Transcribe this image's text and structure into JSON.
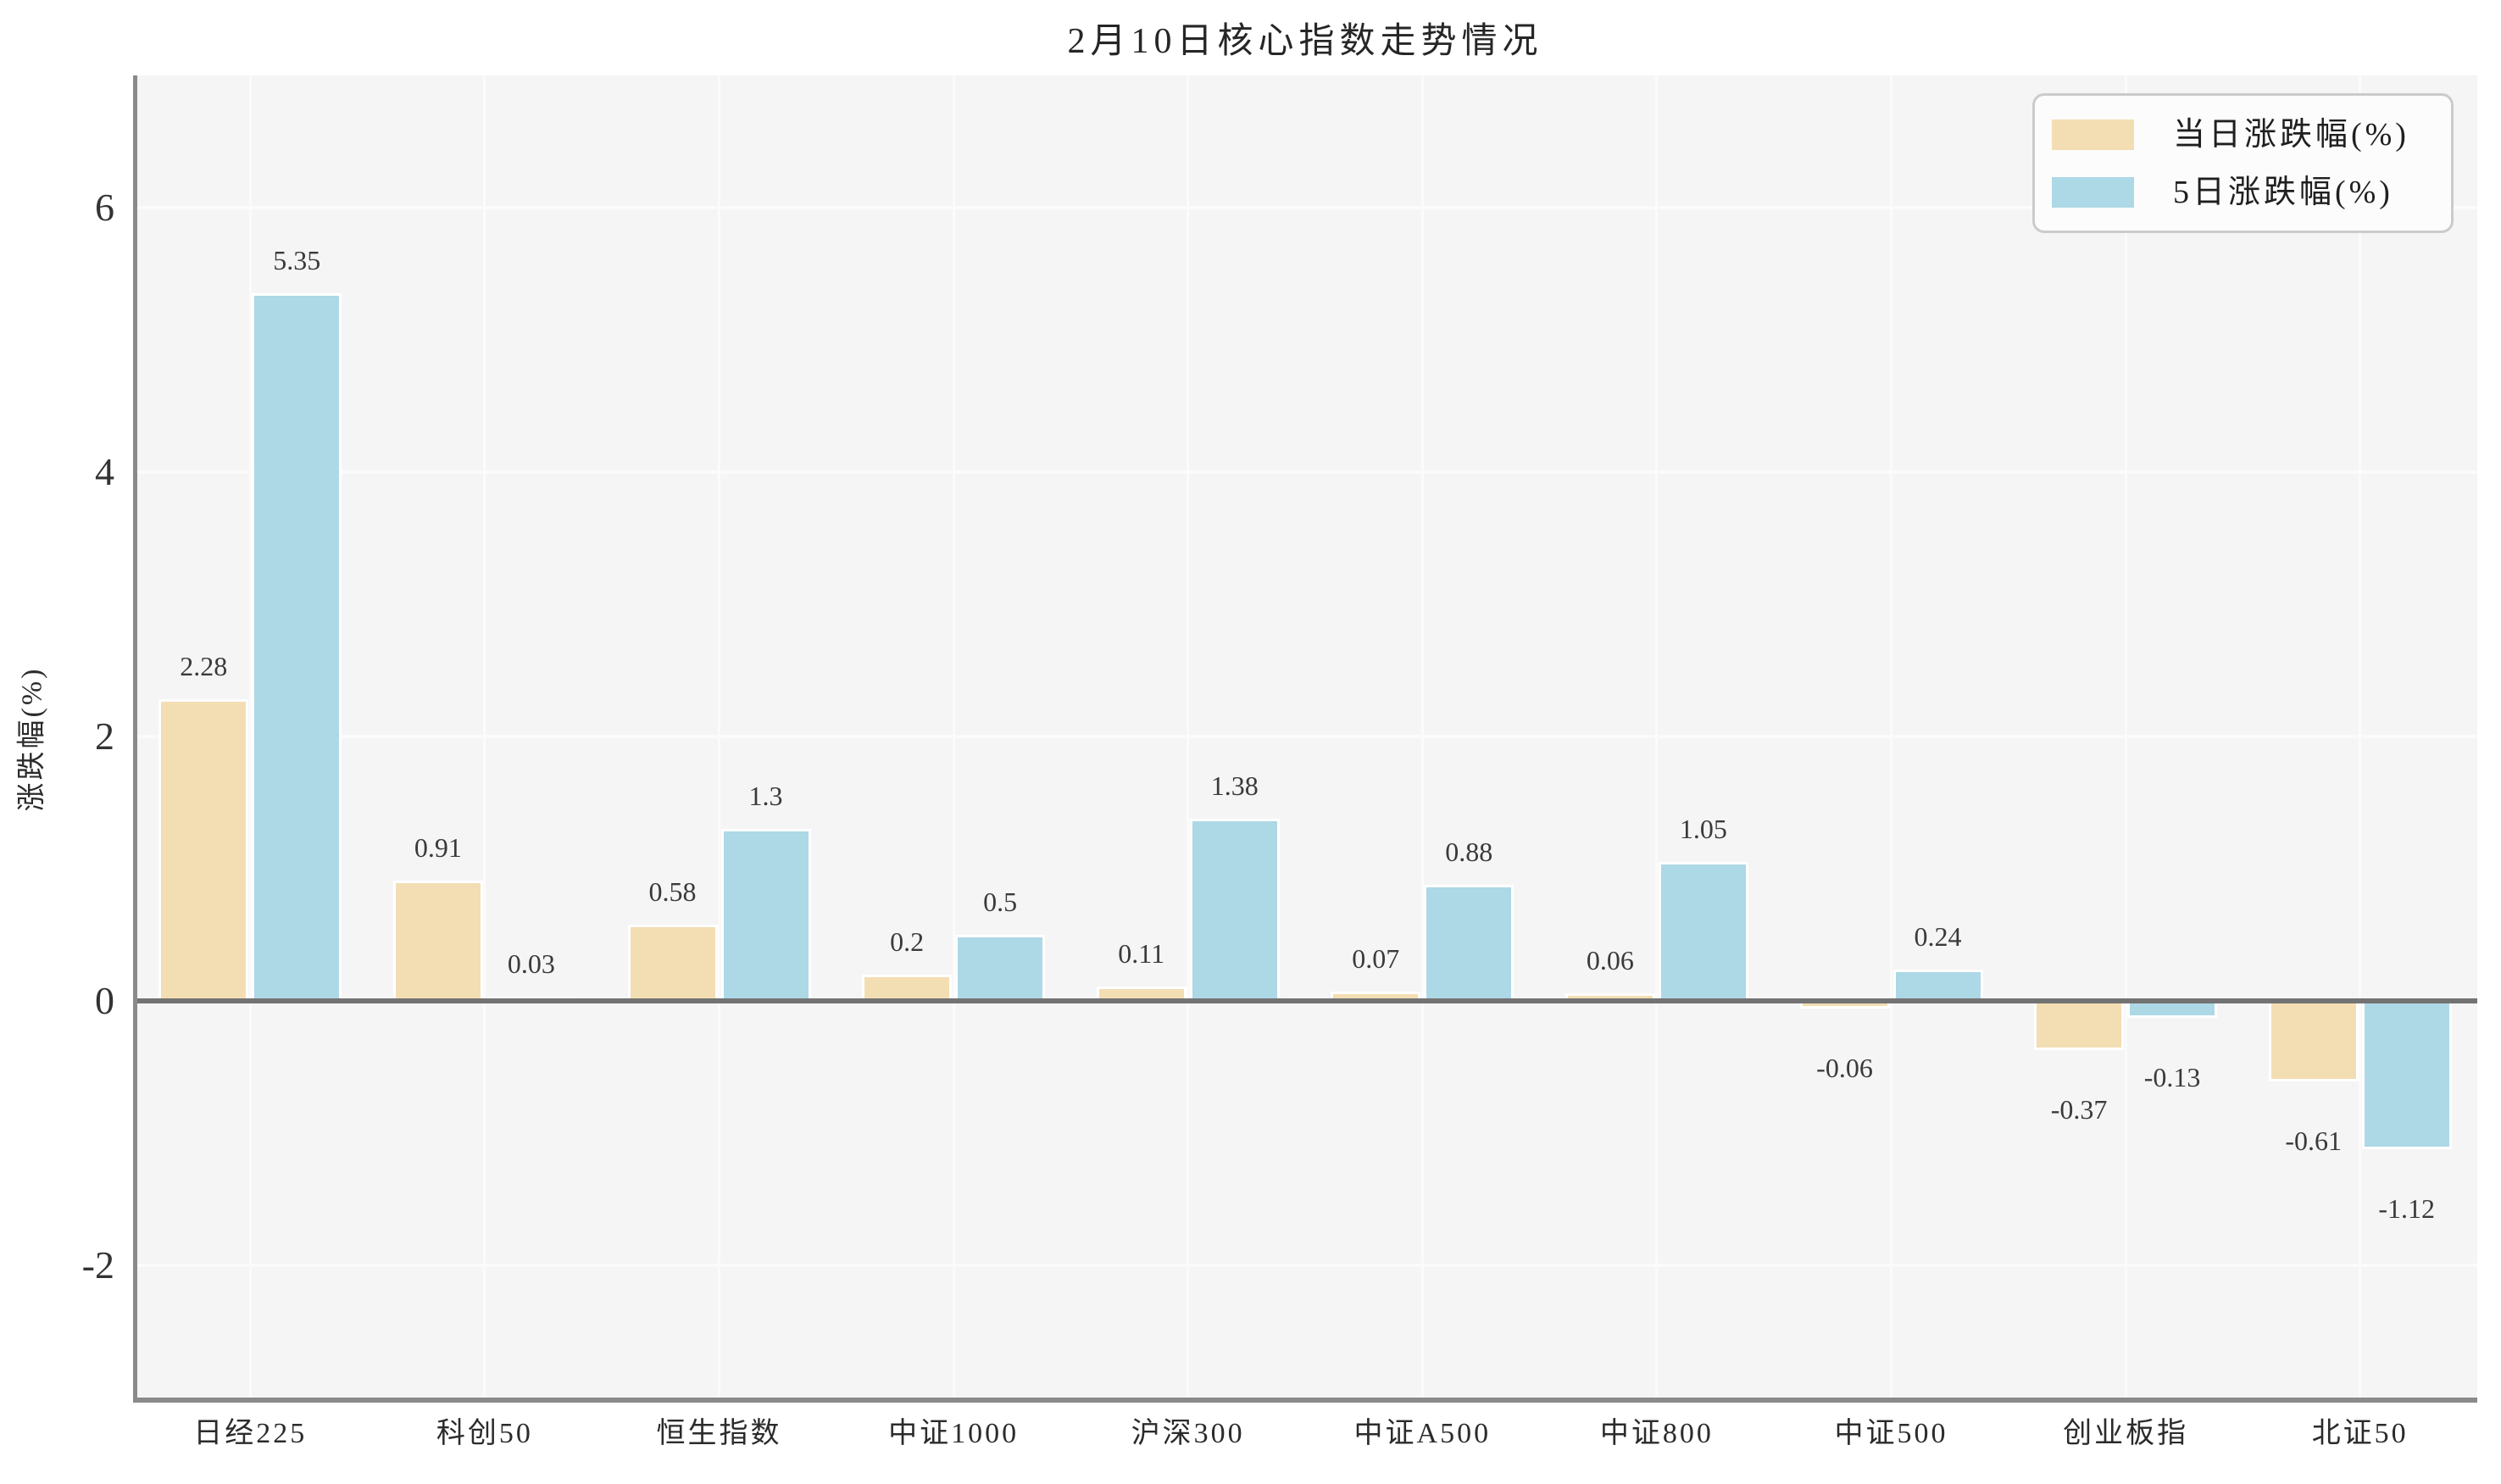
{
  "title": "2月10日核心指数走势情况",
  "colors": {
    "plot_background": "#f5f5f5",
    "bar_day": "#f3deb3",
    "bar_5day": "#add8e6",
    "zero_line": "#737373",
    "spine": "#8a8a8a",
    "gridline": "#fbfbfb",
    "legend_background": "#fcfcfc",
    "legend_border": "#cbcbcb",
    "text": "#2b2b2b"
  },
  "legend": {
    "items": [
      {
        "label": "当日涨跌幅(%)"
      },
      {
        "label": "5日涨跌幅(%)"
      }
    ]
  },
  "chart_data": {
    "type": "bar",
    "title": "2月10日核心指数走势情况",
    "categories": [
      "日经225",
      "科创50",
      "恒生指数",
      "中证1000",
      "沪深300",
      "中证A500",
      "中证800",
      "中证500",
      "创业板指",
      "北证50"
    ],
    "series": [
      {
        "name": "当日涨跌幅(%)",
        "color": "#f3deb3",
        "values": [
          2.28,
          0.91,
          0.58,
          0.2,
          0.11,
          0.07,
          0.06,
          -0.06,
          -0.37,
          -0.61
        ]
      },
      {
        "name": "5日涨跌幅(%)",
        "color": "#add8e6",
        "values": [
          5.35,
          0.03,
          1.3,
          0.5,
          1.38,
          0.88,
          1.05,
          0.24,
          -0.13,
          -1.12
        ]
      }
    ],
    "xlabel": "",
    "ylabel": "涨跌幅(%)",
    "yticks": [
      6,
      4,
      2,
      0,
      -2
    ],
    "ylim": [
      -3,
      7
    ],
    "grid": true,
    "legend_position": "upper right"
  }
}
